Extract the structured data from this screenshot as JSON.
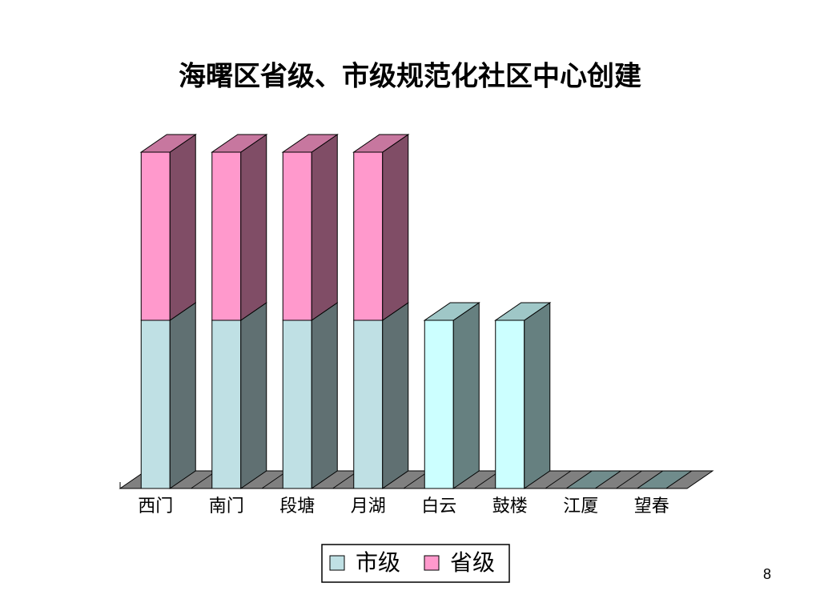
{
  "chart_data": {
    "type": "bar3d_stacked",
    "title": "海曙区省级、市级规范化社区中心创建",
    "categories": [
      "西门",
      "南门",
      "段塘",
      "月湖",
      "白云",
      "鼓楼",
      "江厦",
      "望春"
    ],
    "series": [
      {
        "name": "市级",
        "color": "#bfe0e4",
        "colors": [
          "#bfe0e4",
          "#bfe0e4",
          "#bfe0e4",
          "#bfe0e4",
          "#ccffff",
          "#ccffff",
          "#ccffff",
          "#ccffff"
        ],
        "values": [
          1,
          1,
          1,
          1,
          1,
          1,
          0,
          0
        ]
      },
      {
        "name": "省级",
        "color": "#ff99cc",
        "values": [
          1,
          1,
          1,
          1,
          0,
          0,
          0,
          0
        ]
      }
    ],
    "legend": "bottom",
    "page_number": "8"
  }
}
